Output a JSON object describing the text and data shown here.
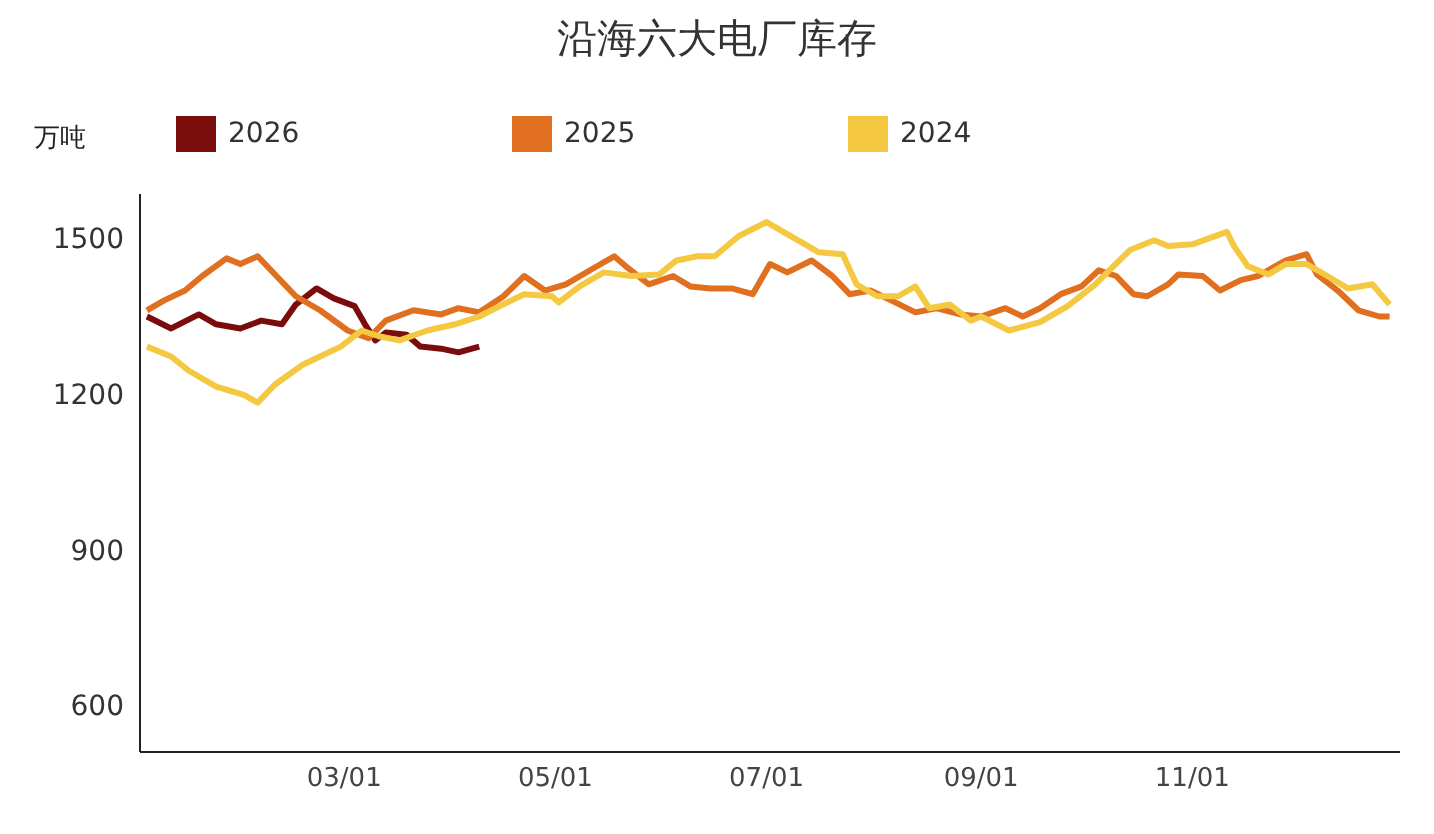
{
  "chart_data": {
    "type": "line",
    "title": "沿海六大电厂库存",
    "ylabel": "万吨",
    "legend": "top left",
    "grid": false,
    "marker": "none",
    "line_style": "solid",
    "xlim": [
      "--01-01",
      "--12-31"
    ],
    "xticks": [
      {
        "value": "--03-01",
        "label": "03/01"
      },
      {
        "value": "--05-01",
        "label": "05/01"
      },
      {
        "value": "--07-01",
        "label": "07/01"
      },
      {
        "value": "--09-01",
        "label": "09/01"
      },
      {
        "value": "--11-01",
        "label": "11/01"
      }
    ],
    "ylim": [
      510,
      1585
    ],
    "yticks": [
      600,
      900,
      1200,
      1500
    ],
    "series": [
      {
        "name": "2026",
        "color": "#7b0c0c",
        "x": [
          "--01-03",
          "--01-10",
          "--01-18",
          "--01-23",
          "--01-30",
          "--02-05",
          "--02-11",
          "--02-15",
          "--02-21",
          "--02-26",
          "--03-04",
          "--03-07",
          "--03-10",
          "--03-13",
          "--03-19",
          "--03-23",
          "--03-29",
          "--04-03",
          "--04-09"
        ],
        "values": [
          1349,
          1326,
          1353,
          1334,
          1326,
          1341,
          1334,
          1372,
          1403,
          1384,
          1369,
          1334,
          1303,
          1318,
          1314,
          1291,
          1287,
          1280,
          1291
        ]
      },
      {
        "name": "2025",
        "color": "#e07020",
        "x": [
          "--01-03",
          "--01-08",
          "--01-14",
          "--01-19",
          "--01-26",
          "--01-30",
          "--02-04",
          "--02-09",
          "--02-15",
          "--02-22",
          "--03-02",
          "--03-08",
          "--03-13",
          "--03-21",
          "--03-29",
          "--04-03",
          "--04-09",
          "--04-16",
          "--04-22",
          "--04-28",
          "--05-04",
          "--05-12",
          "--05-18",
          "--05-22",
          "--05-28",
          "--06-04",
          "--06-09",
          "--06-15",
          "--06-21",
          "--06-27",
          "--07-02",
          "--07-07",
          "--07-14",
          "--07-20",
          "--07-25",
          "--07-31",
          "--08-06",
          "--08-13",
          "--08-19",
          "--08-26",
          "--09-01",
          "--09-08",
          "--09-13",
          "--09-18",
          "--09-24",
          "--09-30",
          "--10-05",
          "--10-10",
          "--10-15",
          "--10-19",
          "--10-25",
          "--10-28",
          "--11-04",
          "--11-09",
          "--11-15",
          "--11-20",
          "--11-28",
          "--12-04",
          "--12-07",
          "--12-13",
          "--12-19",
          "--12-25",
          "--12-28"
        ],
        "values": [
          1361,
          1380,
          1399,
          1427,
          1461,
          1450,
          1465,
          1430,
          1388,
          1361,
          1322,
          1307,
          1341,
          1361,
          1353,
          1365,
          1357,
          1388,
          1427,
          1399,
          1411,
          1442,
          1465,
          1442,
          1411,
          1427,
          1407,
          1403,
          1403,
          1392,
          1450,
          1434,
          1457,
          1427,
          1392,
          1399,
          1380,
          1357,
          1365,
          1353,
          1349,
          1365,
          1349,
          1365,
          1392,
          1407,
          1438,
          1427,
          1392,
          1388,
          1411,
          1430,
          1427,
          1399,
          1419,
          1427,
          1457,
          1469,
          1430,
          1399,
          1361,
          1349,
          1349
        ]
      },
      {
        "name": "2024",
        "color": "#f5c842",
        "x": [
          "--01-03",
          "--01-10",
          "--01-15",
          "--01-23",
          "--01-31",
          "--02-04",
          "--02-09",
          "--02-17",
          "--02-22",
          "--02-28",
          "--03-06",
          "--03-11",
          "--03-17",
          "--03-25",
          "--04-02",
          "--04-09",
          "--04-17",
          "--04-22",
          "--04-30",
          "--05-02",
          "--05-08",
          "--05-15",
          "--05-23",
          "--05-31",
          "--06-05",
          "--06-11",
          "--06-16",
          "--06-23",
          "--07-01",
          "--07-08",
          "--07-16",
          "--07-23",
          "--07-27",
          "--08-02",
          "--08-08",
          "--08-13",
          "--08-17",
          "--08-23",
          "--08-29",
          "--09-01",
          "--09-09",
          "--09-18",
          "--09-26",
          "--10-04",
          "--10-08",
          "--10-14",
          "--10-21",
          "--10-25",
          "--11-01",
          "--11-11",
          "--11-13",
          "--11-17",
          "--11-23",
          "--11-28",
          "--12-04",
          "--12-10",
          "--12-16",
          "--12-23",
          "--12-28"
        ],
        "values": [
          1291,
          1272,
          1245,
          1214,
          1198,
          1183,
          1218,
          1256,
          1272,
          1291,
          1322,
          1311,
          1303,
          1322,
          1334,
          1349,
          1376,
          1392,
          1388,
          1376,
          1407,
          1434,
          1427,
          1430,
          1457,
          1465,
          1465,
          1504,
          1531,
          1504,
          1473,
          1469,
          1411,
          1388,
          1388,
          1407,
          1365,
          1372,
          1341,
          1349,
          1322,
          1338,
          1369,
          1411,
          1438,
          1477,
          1496,
          1485,
          1488,
          1512,
          1485,
          1446,
          1430,
          1450,
          1450,
          1427,
          1403,
          1411,
          1372
        ]
      }
    ]
  }
}
